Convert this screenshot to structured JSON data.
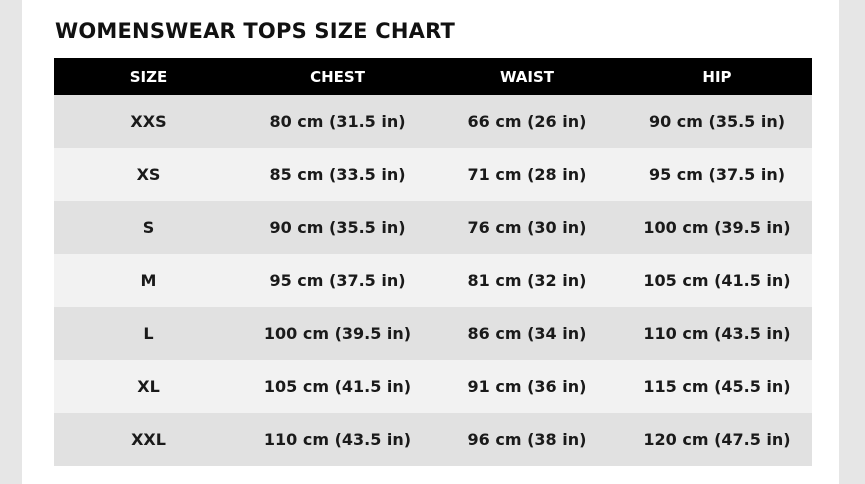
{
  "title": "WOMENSWEAR TOPS SIZE CHART",
  "table": {
    "headers": [
      "SIZE",
      "CHEST",
      "WAIST",
      "HIP"
    ],
    "rows": [
      [
        "XXS",
        "80 cm (31.5 in)",
        "66 cm (26 in)",
        "90 cm (35.5 in)"
      ],
      [
        "XS",
        "85 cm (33.5 in)",
        "71 cm (28 in)",
        "95 cm (37.5 in)"
      ],
      [
        "S",
        "90 cm (35.5 in)",
        "76 cm (30 in)",
        "100 cm (39.5 in)"
      ],
      [
        "M",
        "95 cm (37.5 in)",
        "81 cm (32 in)",
        "105 cm (41.5 in)"
      ],
      [
        "L",
        "100 cm (39.5 in)",
        "86 cm (34 in)",
        "110 cm (43.5 in)"
      ],
      [
        "XL",
        "105 cm (41.5 in)",
        "91 cm (36 in)",
        "115 cm (45.5 in)"
      ],
      [
        "XXL",
        "110 cm (43.5 in)",
        "96 cm (38 in)",
        "120 cm (47.5 in)"
      ]
    ]
  }
}
